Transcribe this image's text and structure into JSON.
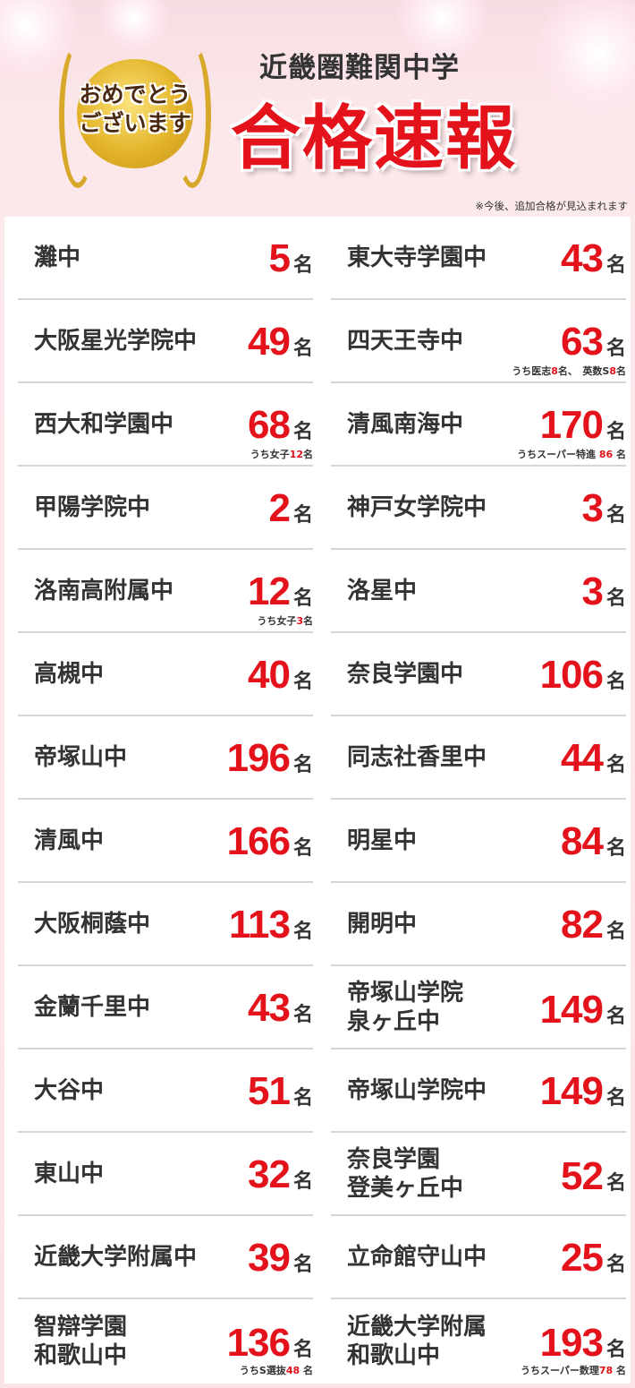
{
  "header": {
    "badge_line1": "おめでとう",
    "badge_line2": "ございます",
    "subtitle": "近畿圏難関中学",
    "title": "合格速報",
    "note": "※今後、追加合格が見込まれます"
  },
  "colors": {
    "accent": "#e3121b",
    "text": "#333333",
    "background": "#fbe4e8"
  },
  "unit": "名",
  "results": [
    {
      "name": "灘中",
      "count": "5"
    },
    {
      "name": "東大寺学園中",
      "count": "43"
    },
    {
      "name": "大阪星光学院中",
      "count": "49"
    },
    {
      "name": "四天王寺中",
      "count": "63",
      "note": [
        {
          "t": "うち医志"
        },
        {
          "t": "8",
          "red": true
        },
        {
          "t": "名、　英数S"
        },
        {
          "t": "8",
          "red": true
        },
        {
          "t": "名"
        }
      ]
    },
    {
      "name": "西大和学園中",
      "count": "68",
      "note": [
        {
          "t": "うち女子"
        },
        {
          "t": "12",
          "red": true
        },
        {
          "t": "名"
        }
      ]
    },
    {
      "name": "清風南海中",
      "count": "170",
      "note": [
        {
          "t": "うちスーパー特進 "
        },
        {
          "t": "86",
          "red": true
        },
        {
          "t": " 名"
        }
      ]
    },
    {
      "name": "甲陽学院中",
      "count": "2"
    },
    {
      "name": "神戸女学院中",
      "count": "3"
    },
    {
      "name": "洛南高附属中",
      "count": "12",
      "note": [
        {
          "t": "うち女子"
        },
        {
          "t": "3",
          "red": true
        },
        {
          "t": "名"
        }
      ]
    },
    {
      "name": "洛星中",
      "count": "3"
    },
    {
      "name": "高槻中",
      "count": "40"
    },
    {
      "name": "奈良学園中",
      "count": "106"
    },
    {
      "name": "帝塚山中",
      "count": "196"
    },
    {
      "name": "同志社香里中",
      "count": "44"
    },
    {
      "name": "清風中",
      "count": "166"
    },
    {
      "name": "明星中",
      "count": "84"
    },
    {
      "name": "大阪桐蔭中",
      "count": "113"
    },
    {
      "name": "開明中",
      "count": "82"
    },
    {
      "name": "金蘭千里中",
      "count": "43"
    },
    {
      "name": "帝塚山学院\n泉ヶ丘中",
      "count": "149"
    },
    {
      "name": "大谷中",
      "count": "51"
    },
    {
      "name": "帝塚山学院中",
      "count": "149"
    },
    {
      "name": "東山中",
      "count": "32"
    },
    {
      "name": "奈良学園\n登美ヶ丘中",
      "count": "52"
    },
    {
      "name": "近畿大学附属中",
      "count": "39"
    },
    {
      "name": "立命館守山中",
      "count": "25"
    },
    {
      "name": "智辯学園\n和歌山中",
      "count": "136",
      "note": [
        {
          "t": "うちS選抜"
        },
        {
          "t": "48",
          "red": true
        },
        {
          "t": " 名"
        }
      ]
    },
    {
      "name": "近畿大学附属\n和歌山中",
      "count": "193",
      "note": [
        {
          "t": "うちスーパー数理"
        },
        {
          "t": "78",
          "red": true
        },
        {
          "t": " 名"
        }
      ]
    }
  ]
}
